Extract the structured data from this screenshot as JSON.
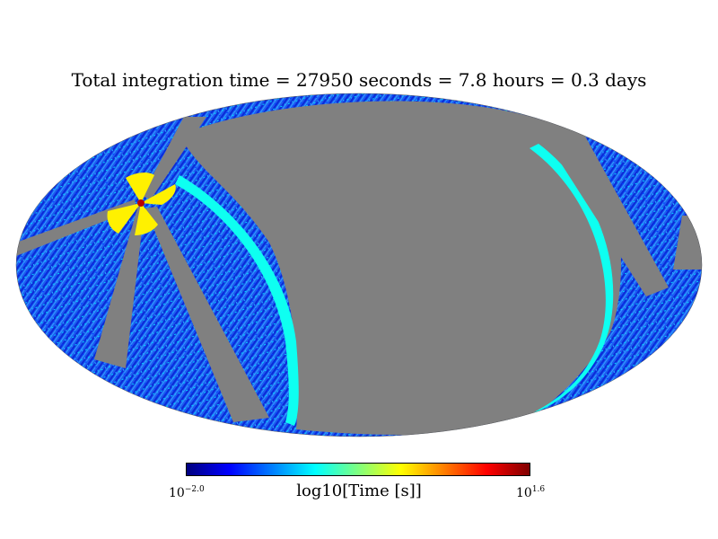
{
  "chart_data": {
    "type": "heatmap",
    "projection": "mollweide",
    "title": "Total integration time = 27950 seconds = 7.8 hours = 0.3 days",
    "colorbar": {
      "label": "log10[Time [s]]",
      "colormap": "jet",
      "scale": "log",
      "min_base": "10",
      "min_exp": "−2.0",
      "max_base": "10",
      "max_exp": "1.6",
      "range": [
        -2.0,
        1.6
      ]
    },
    "unobserved_color": "#808080",
    "colormap_stops": [
      "#00007f",
      "#0000ff",
      "#007fff",
      "#00ffff",
      "#7fff7f",
      "#ffff00",
      "#ff7f00",
      "#ff0000",
      "#7f0000"
    ],
    "hotspot_log_time": 1.4,
    "cap_log_time": 0.3,
    "limb_log_time": -0.6,
    "typical_log_time": -1.5
  }
}
